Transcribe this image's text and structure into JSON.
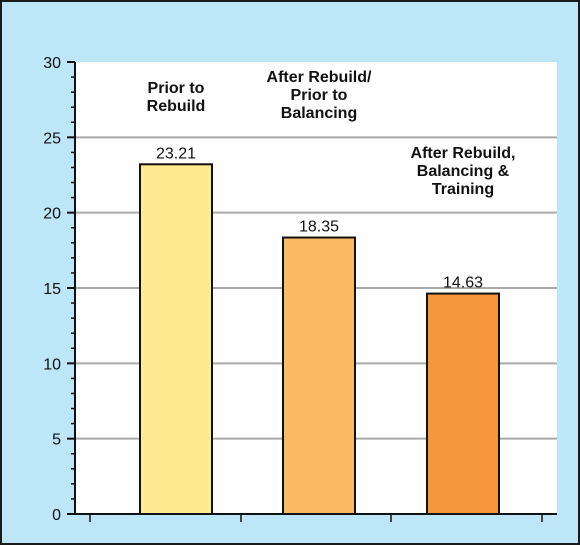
{
  "chart_data": {
    "type": "bar",
    "categories": [
      "Prior to Rebuild",
      "After Rebuild/ Prior to Balancing",
      "After Rebuild, Balancing & Training"
    ],
    "category_label_lines": [
      [
        "Prior to",
        "Rebuild"
      ],
      [
        "After Rebuild/",
        "Prior to",
        "Balancing"
      ],
      [
        "After Rebuild,",
        "Balancing &",
        "Training"
      ]
    ],
    "values": [
      23.21,
      18.35,
      14.63
    ],
    "data_labels": [
      "23.21",
      "18.35",
      "14.63"
    ],
    "title": "",
    "xlabel": "",
    "ylabel": "",
    "ylim": [
      0,
      30
    ],
    "yticks": [
      "0",
      "5",
      "10",
      "15",
      "20",
      "25",
      "30"
    ],
    "grid": true,
    "legend": "none",
    "bar_colors": [
      "#fde98e",
      "#fbb964",
      "#f5963a"
    ]
  },
  "colors": {
    "background": "#bde6f8",
    "plot_area": "#ffffff",
    "grid": "#a9a9a9",
    "axis": "#111111",
    "bar_outline": "#111111"
  }
}
